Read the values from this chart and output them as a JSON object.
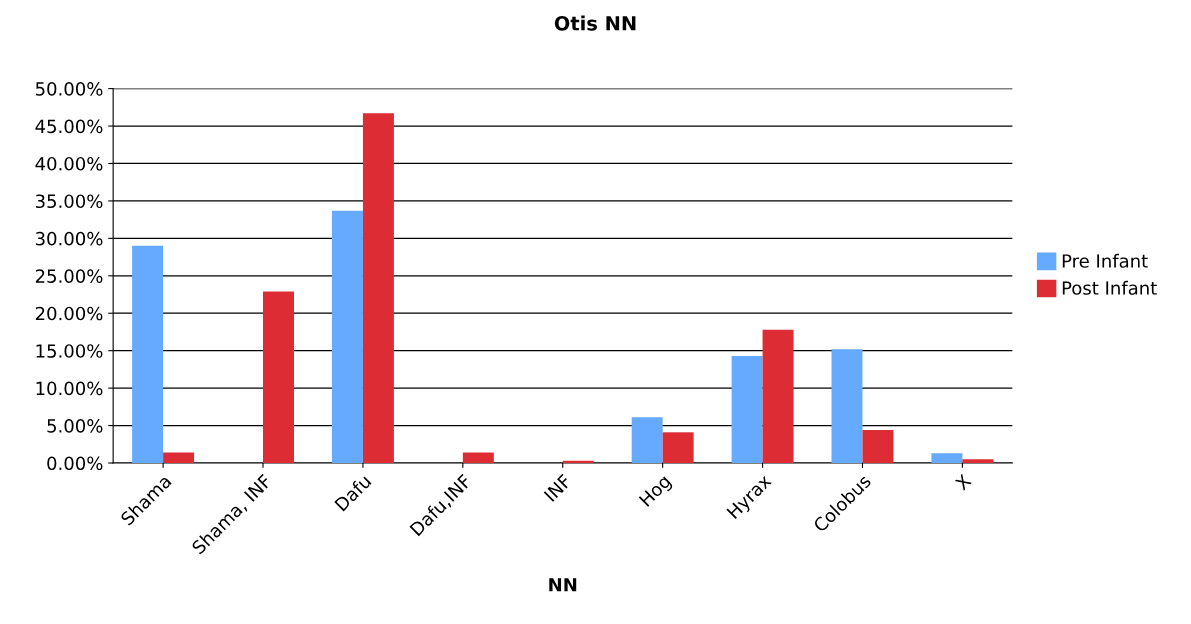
{
  "chart_data": {
    "type": "bar",
    "title": "Otis NN",
    "xlabel": "NN",
    "categories": [
      "Shama",
      "Shama, INF",
      "Dafu",
      "Dafu,INF",
      "INF",
      "Hog",
      "Hyrax",
      "Colobus",
      "X"
    ],
    "series": [
      {
        "name": "Pre Infant",
        "color": "#66aaff",
        "values": [
          29.0,
          0,
          33.7,
          0,
          0,
          6.1,
          14.3,
          15.2,
          1.3
        ]
      },
      {
        "name": "Post Infant",
        "color": "#dd2c33",
        "values": [
          1.4,
          22.9,
          46.7,
          1.4,
          0.3,
          4.1,
          17.8,
          4.4,
          0.5
        ]
      }
    ],
    "ylim": [
      0,
      50
    ],
    "yticks": [
      {
        "value": 0,
        "label": "0.00%"
      },
      {
        "value": 5,
        "label": "5.00%"
      },
      {
        "value": 10,
        "label": "10.00%"
      },
      {
        "value": 15,
        "label": "15.00%"
      },
      {
        "value": 20,
        "label": "20.00%"
      },
      {
        "value": 25,
        "label": "25.00%"
      },
      {
        "value": 30,
        "label": "30.00%"
      },
      {
        "value": 35,
        "label": "35.00%"
      },
      {
        "value": 40,
        "label": "40.00%"
      },
      {
        "value": 45,
        "label": "45.00%"
      },
      {
        "value": 50,
        "label": "50.00%"
      }
    ],
    "grid": "y",
    "legend": "right"
  }
}
